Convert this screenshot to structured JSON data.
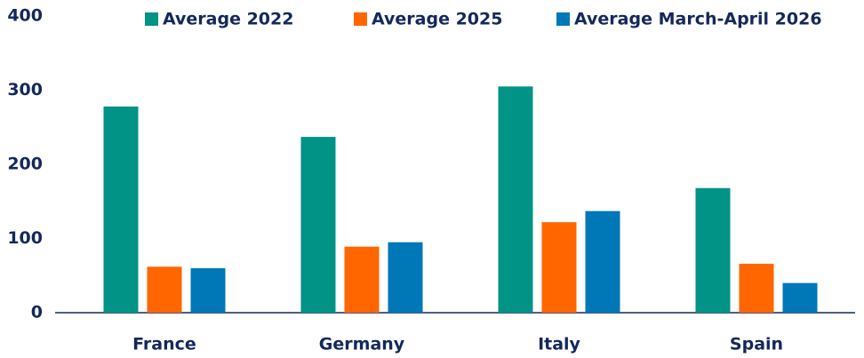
{
  "chart_data": {
    "type": "bar",
    "categories": [
      "France",
      "Germany",
      "Italy",
      "Spain"
    ],
    "series": [
      {
        "name": "Average 2022",
        "color": "#009386",
        "values": [
          278,
          237,
          305,
          168
        ]
      },
      {
        "name": "Average 2025",
        "color": "#ff6600",
        "values": [
          62,
          89,
          122,
          66
        ]
      },
      {
        "name": "Average March-April 2026",
        "color": "#0077b6",
        "values": [
          60,
          95,
          137,
          40
        ]
      }
    ],
    "ylim": [
      0,
      400
    ],
    "yticks": [
      0,
      100,
      200,
      300,
      400
    ],
    "legend": "top"
  }
}
